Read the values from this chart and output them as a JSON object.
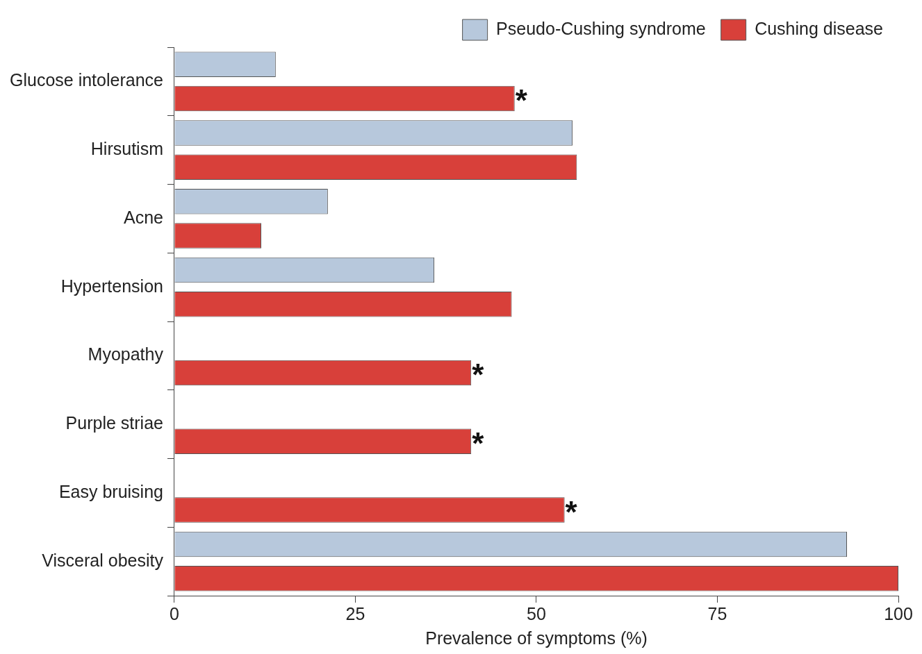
{
  "chart_data": {
    "type": "bar",
    "orientation": "horizontal",
    "xlabel": "Prevalence of symptoms (%)",
    "categories": [
      "Glucose intolerance",
      "Hirsutism",
      "Acne",
      "Hypertension",
      "Myopathy",
      "Purple striae",
      "Easy bruising",
      "Visceral obesity"
    ],
    "series": [
      {
        "name": "Cushing disease",
        "color": "#d8403a",
        "values": [
          47,
          55.6,
          12,
          46.6,
          41,
          41,
          53.9,
          100
        ],
        "value_labels": [
          "*",
          null,
          null,
          null,
          "*",
          "*",
          "*",
          null
        ]
      },
      {
        "name": "Pseudo-Cushing syndrome",
        "color": "#b7c8dc",
        "values": [
          14,
          55,
          21.2,
          35.9,
          0,
          0,
          0,
          92.9
        ]
      }
    ],
    "xlim": [
      0,
      100
    ],
    "xticks": [
      0,
      25,
      50,
      75,
      100
    ],
    "grid": false,
    "legend": "top right"
  }
}
